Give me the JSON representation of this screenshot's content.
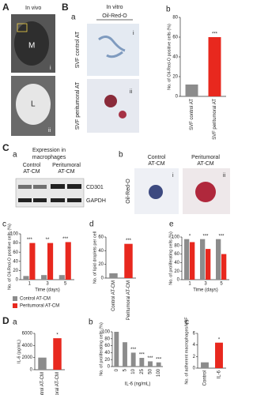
{
  "panel_A": {
    "label": "A",
    "title": "In vivo",
    "image_labels": [
      "M",
      "i",
      "L",
      "ii"
    ]
  },
  "panel_B": {
    "label": "B",
    "sub_a": "a",
    "title": "In vitro",
    "stain": "Oil-Red-O",
    "rows": [
      "SVF control AT",
      "SVF peritumoral AT"
    ],
    "image_labels": [
      "i",
      "ii"
    ]
  },
  "panel_C": {
    "label": "C",
    "sub_a": "a",
    "title": [
      "Expression in",
      "macrophages"
    ],
    "groups": [
      [
        "Control",
        "AT-CM"
      ],
      [
        "Peritumoral",
        "AT-CM"
      ]
    ],
    "blots": [
      "CD301",
      "GAPDH"
    ],
    "sub_b": "b",
    "stain": "Oil-Red-O",
    "conditions": [
      [
        "Control",
        "AT-CM"
      ],
      [
        "Peritumoral",
        "AT-CM"
      ]
    ],
    "image_labels": [
      "i",
      "ii"
    ]
  },
  "panel_D": {
    "label": "D"
  },
  "chart_data": [
    {
      "type": "bar",
      "panel": "b",
      "y_label": "No. of Oil-Red-O positive cells (%)",
      "categories": [
        "SVF control AT",
        "SVF peritumoral AT"
      ],
      "values": [
        12,
        60
      ],
      "colors": [
        "#8c8c8c",
        "#e8281e"
      ],
      "annotations": [
        null,
        "***"
      ],
      "ylim": [
        0,
        80
      ],
      "yticks": [
        0,
        20,
        40,
        60,
        80
      ]
    },
    {
      "type": "bar",
      "panel": "c",
      "y_label": "No. of Oil-Red-O positive cells (%)",
      "x_label": "Time (days)",
      "categories": [
        "1",
        "3",
        "5"
      ],
      "series": [
        {
          "name": "Control AT-CM",
          "color": "#8c8c8c",
          "values": [
            8,
            10,
            10
          ]
        },
        {
          "name": "Peritumoral AT-CM",
          "color": "#e8281e",
          "values": [
            80,
            80,
            82
          ]
        }
      ],
      "annotations": [
        "***",
        "**",
        "***"
      ],
      "ylim": [
        0,
        100
      ],
      "yticks": [
        0,
        20,
        40,
        60,
        80,
        100
      ]
    },
    {
      "type": "bar",
      "panel": "d",
      "y_label": "No. of lipid droplets per cell",
      "categories": [
        "Control AT-CM",
        "Peritumoral AT-CM"
      ],
      "values": [
        7,
        50
      ],
      "colors": [
        "#8c8c8c",
        "#e8281e"
      ],
      "annotations": [
        null,
        "***"
      ],
      "ylim": [
        0,
        60
      ],
      "yticks": [
        0,
        20,
        40,
        60
      ]
    },
    {
      "type": "bar",
      "panel": "e",
      "y_label": "No. of proliferating cells (%)",
      "x_label": "Time (days)",
      "categories": [
        "1",
        "3",
        "5"
      ],
      "series": [
        {
          "name": "Control AT-CM",
          "color": "#8c8c8c",
          "values": [
            95,
            95,
            95
          ]
        },
        {
          "name": "Peritumoral AT-CM",
          "color": "#e8281e",
          "values": [
            88,
            72,
            60
          ]
        }
      ],
      "annotations": [
        "*",
        "***",
        "***"
      ],
      "ylim": [
        0,
        100
      ],
      "yticks": [
        0,
        20,
        40,
        60,
        80,
        100
      ]
    },
    {
      "type": "bar",
      "panel": "a",
      "y_label": "IL-6 (pg/mL)",
      "categories": [
        "Control AT-CM",
        "Peritumoral AT-CM"
      ],
      "values": [
        2000,
        5200
      ],
      "colors": [
        "#8c8c8c",
        "#e8281e"
      ],
      "annotations": [
        null,
        "*"
      ],
      "ylim": [
        0,
        6000
      ],
      "yticks": [
        0,
        2000,
        4000,
        6000
      ]
    },
    {
      "type": "bar",
      "panel": "b",
      "y_label": "No. of proliferating cells (%)",
      "x_label": "IL-6 (ng/mL)",
      "categories": [
        "0",
        "5",
        "10",
        "25",
        "50",
        "100"
      ],
      "values": [
        100,
        70,
        40,
        25,
        15,
        12
      ],
      "colors": [
        "#8c8c8c",
        "#8c8c8c",
        "#8c8c8c",
        "#8c8c8c",
        "#8c8c8c",
        "#8c8c8c"
      ],
      "annotations": [
        null,
        null,
        "***",
        "***",
        "***",
        "***"
      ],
      "ylim": [
        0,
        100
      ],
      "yticks": [
        0,
        20,
        40,
        60,
        80,
        100
      ]
    },
    {
      "type": "bar",
      "panel": "c",
      "y_label": "No. of adherent macrophages/HPF",
      "categories": [
        "Control",
        "IL-6"
      ],
      "values": [
        1,
        4.4
      ],
      "colors": [
        "#8c8c8c",
        "#e8281e"
      ],
      "annotations": [
        null,
        "*"
      ],
      "ylim": [
        0,
        6
      ],
      "yticks": [
        0,
        2,
        4,
        6
      ]
    }
  ]
}
